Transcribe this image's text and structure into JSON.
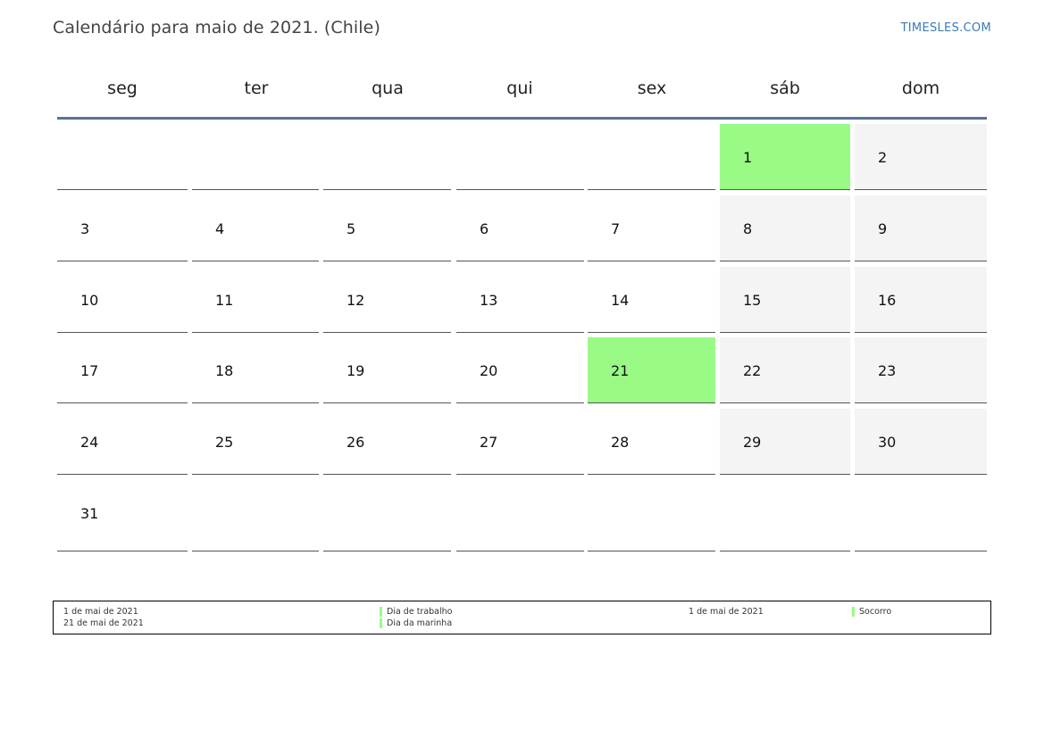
{
  "title": "Calendário para maio de 2021. (Chile)",
  "brand": "TIMESLES.COM",
  "weekdays": [
    "seg",
    "ter",
    "qua",
    "qui",
    "sex",
    "sáb",
    "dom"
  ],
  "weeks": [
    [
      null,
      null,
      null,
      null,
      null,
      1,
      2
    ],
    [
      3,
      4,
      5,
      6,
      7,
      8,
      9
    ],
    [
      10,
      11,
      12,
      13,
      14,
      15,
      16
    ],
    [
      17,
      18,
      19,
      20,
      21,
      22,
      23
    ],
    [
      24,
      25,
      26,
      27,
      28,
      29,
      30
    ],
    [
      31,
      null,
      null,
      null,
      null,
      null,
      null
    ]
  ],
  "holidays": [
    1,
    21
  ],
  "colors": {
    "holiday": "#99fb86",
    "weekend": "#f4f4f4",
    "header_line": "#5a7394",
    "brand": "#3a7ab8"
  },
  "legend": {
    "left": [
      {
        "date": "1 de mai de 2021",
        "name": "Dia de trabalho"
      },
      {
        "date": "21 de mai de 2021",
        "name": "Dia da marinha"
      }
    ],
    "right": [
      {
        "date": "1 de mai de 2021",
        "name": "Socorro"
      }
    ]
  }
}
